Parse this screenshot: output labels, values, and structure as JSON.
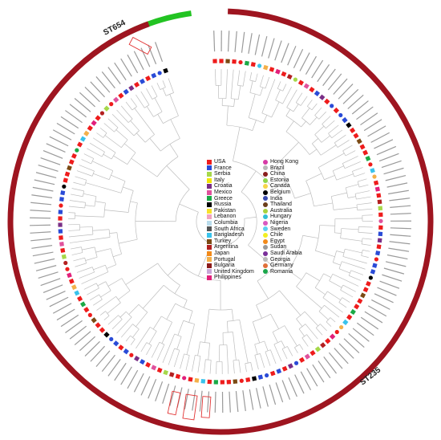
{
  "clades": {
    "st654": {
      "label": "ST654",
      "color": "#22c322"
    },
    "st235": {
      "label": "ST235",
      "color": "#9e1520"
    }
  },
  "branch_color": "#bdbdbd",
  "highlight_color": "#e23434",
  "legend": {
    "column1": [
      {
        "name": "USA",
        "color": "#ee1c1c",
        "shape": "square"
      },
      {
        "name": "France",
        "color": "#2a4bd7",
        "shape": "square"
      },
      {
        "name": "Serbia",
        "color": "#a6d84a",
        "shape": "square"
      },
      {
        "name": "Italy",
        "color": "#f2e400",
        "shape": "square"
      },
      {
        "name": "Croatia",
        "color": "#7a2f86",
        "shape": "square"
      },
      {
        "name": "Mexico",
        "color": "#e0529c",
        "shape": "square"
      },
      {
        "name": "Greece",
        "color": "#1aaa46",
        "shape": "square"
      },
      {
        "name": "Russia",
        "color": "#000000",
        "shape": "square"
      },
      {
        "name": "Pakistan",
        "color": "#f7e12b",
        "shape": "square"
      },
      {
        "name": "Lebanon",
        "color": "#f2a3c0",
        "shape": "square"
      },
      {
        "name": "Columbia",
        "color": "#b9dcec",
        "shape": "square"
      },
      {
        "name": "South Africa",
        "color": "#555555",
        "shape": "square"
      },
      {
        "name": "Bangladesh",
        "color": "#39c3ec",
        "shape": "square"
      },
      {
        "name": "Turkey",
        "color": "#7b4a14",
        "shape": "square"
      },
      {
        "name": "Argentina",
        "color": "#b32020",
        "shape": "square"
      },
      {
        "name": "Japan",
        "color": "#f28a1a",
        "shape": "square"
      },
      {
        "name": "Portugal",
        "color": "#f3b04a",
        "shape": "square"
      },
      {
        "name": "Bulgaria",
        "color": "#8c1a1a",
        "shape": "square"
      },
      {
        "name": "United Kingdom",
        "color": "#c8a6d8",
        "shape": "square"
      },
      {
        "name": "Philippines",
        "color": "#e2207a",
        "shape": "square"
      }
    ],
    "column2": [
      {
        "name": "Hong Kong",
        "color": "#d63aa6",
        "shape": "circle"
      },
      {
        "name": "Brazil",
        "color": "#b9b9b9",
        "shape": "circle"
      },
      {
        "name": "China",
        "color": "#8a1e1e",
        "shape": "circle"
      },
      {
        "name": "Estonia",
        "color": "#8fd64a",
        "shape": "circle"
      },
      {
        "name": "Canada",
        "color": "#f5d54a",
        "shape": "circle"
      },
      {
        "name": "Belgium",
        "color": "#000000",
        "shape": "circle"
      },
      {
        "name": "India",
        "color": "#3a4bb0",
        "shape": "circle"
      },
      {
        "name": "Thailand",
        "color": "#6b3d1a",
        "shape": "circle"
      },
      {
        "name": "Australia",
        "color": "#a7d23e",
        "shape": "circle"
      },
      {
        "name": "Hungary",
        "color": "#33c0d4",
        "shape": "circle"
      },
      {
        "name": "Nigeria",
        "color": "#d85ac0",
        "shape": "circle"
      },
      {
        "name": "Sweden",
        "color": "#5ad0f0",
        "shape": "circle"
      },
      {
        "name": "Chile",
        "color": "#f2ee22",
        "shape": "circle"
      },
      {
        "name": "Egypt",
        "color": "#f28a1a",
        "shape": "circle"
      },
      {
        "name": "Sudan",
        "color": "#9a9a9a",
        "shape": "circle"
      },
      {
        "name": "Saudi Arabia",
        "color": "#7a2f9a",
        "shape": "circle"
      },
      {
        "name": "Georgia",
        "color": "#b9b9b9",
        "shape": "circle"
      },
      {
        "name": "Germany",
        "color": "#e0703a",
        "shape": "circle"
      },
      {
        "name": "Romania",
        "color": "#1aa64a",
        "shape": "circle"
      }
    ]
  }
}
